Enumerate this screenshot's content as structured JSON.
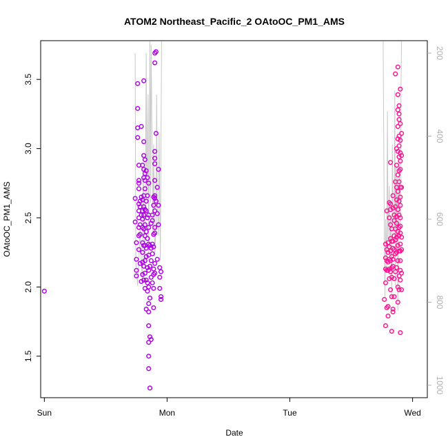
{
  "chart_data": {
    "type": "scatter",
    "title": "ATOM2 Northeast_Pacific_2 OAtoOC_PM1_AMS",
    "xlabel": "Date",
    "ylabel": "OAtoOC_PM1_AMS",
    "x_axis": {
      "unit": "days since Sunday 00:00",
      "range": [
        -0.03,
        3.12
      ],
      "ticks": [
        {
          "value": 0,
          "label": "Sun"
        },
        {
          "value": 1,
          "label": "Mon"
        },
        {
          "value": 2,
          "label": "Tue"
        },
        {
          "value": 3,
          "label": "Wed"
        }
      ]
    },
    "y_axis": {
      "range": [
        1.2,
        3.78
      ],
      "ticks": [
        1.5,
        2.0,
        2.5,
        3.0,
        3.5
      ],
      "tick_labels": [
        "1.5",
        "2.0",
        "2.5",
        "3.0",
        "3.5"
      ]
    },
    "y2_axis": {
      "label": "",
      "range": [
        1030,
        170
      ],
      "reversed": true,
      "ticks": [
        200,
        400,
        600,
        800,
        1000
      ],
      "color": "#b0b0b0"
    },
    "grid": false,
    "colors": {
      "early_flight": "#b000e8",
      "late_flight": "#ff1493",
      "profile_line": "#c8c8c8"
    },
    "series": [
      {
        "marker": "open-circle",
        "values": [
          [
            0.0,
            1.97
          ],
          [
            0.74,
            2.64
          ],
          [
            0.74,
            2.47
          ],
          [
            0.75,
            2.2
          ],
          [
            0.75,
            2.12
          ],
          [
            0.75,
            2.08
          ],
          [
            0.75,
            2.32
          ],
          [
            0.76,
            3.47
          ],
          [
            0.76,
            3.29
          ],
          [
            0.76,
            3.15
          ],
          [
            0.76,
            3.08
          ],
          [
            0.77,
            2.88
          ],
          [
            0.77,
            2.77
          ],
          [
            0.77,
            2.75
          ],
          [
            0.77,
            2.71
          ],
          [
            0.77,
            2.6
          ],
          [
            0.77,
            2.55
          ],
          [
            0.77,
            2.5
          ],
          [
            0.77,
            2.43
          ],
          [
            0.77,
            2.37
          ],
          [
            0.77,
            2.27
          ],
          [
            0.78,
            2.62
          ],
          [
            0.78,
            2.58
          ],
          [
            0.78,
            2.45
          ],
          [
            0.78,
            2.38
          ],
          [
            0.78,
            2.17
          ],
          [
            0.79,
            2.04
          ],
          [
            0.79,
            2.52
          ],
          [
            0.79,
            2.65
          ],
          [
            0.79,
            3.16
          ],
          [
            0.8,
            2.88
          ],
          [
            0.8,
            2.63
          ],
          [
            0.8,
            2.55
          ],
          [
            0.8,
            2.49
          ],
          [
            0.8,
            2.43
          ],
          [
            0.8,
            2.32
          ],
          [
            0.8,
            2.25
          ],
          [
            0.8,
            2.18
          ],
          [
            0.8,
            2.09
          ],
          [
            0.81,
            3.49
          ],
          [
            0.81,
            3.05
          ],
          [
            0.81,
            2.95
          ],
          [
            0.81,
            2.85
          ],
          [
            0.81,
            2.79
          ],
          [
            0.81,
            2.66
          ],
          [
            0.81,
            2.58
          ],
          [
            0.81,
            2.52
          ],
          [
            0.81,
            2.42
          ],
          [
            0.81,
            2.3
          ],
          [
            0.81,
            2.15
          ],
          [
            0.81,
            2.05
          ],
          [
            0.82,
            2.92
          ],
          [
            0.82,
            2.82
          ],
          [
            0.82,
            2.77
          ],
          [
            0.82,
            2.71
          ],
          [
            0.82,
            2.56
          ],
          [
            0.82,
            2.45
          ],
          [
            0.82,
            2.37
          ],
          [
            0.82,
            2.3
          ],
          [
            0.82,
            2.19
          ],
          [
            0.82,
            2.1
          ],
          [
            0.82,
            1.99
          ],
          [
            0.83,
            2.84
          ],
          [
            0.83,
            2.62
          ],
          [
            0.83,
            2.55
          ],
          [
            0.83,
            2.4
          ],
          [
            0.83,
            2.28
          ],
          [
            0.83,
            2.22
          ],
          [
            0.83,
            2.05
          ],
          [
            0.83,
            1.84
          ],
          [
            0.84,
            2.79
          ],
          [
            0.84,
            2.66
          ],
          [
            0.84,
            2.5
          ],
          [
            0.84,
            2.35
          ],
          [
            0.84,
            2.14
          ],
          [
            0.84,
            2.03
          ],
          [
            0.84,
            1.97
          ],
          [
            0.85,
            2.75
          ],
          [
            0.85,
            2.52
          ],
          [
            0.85,
            2.43
          ],
          [
            0.85,
            2.31
          ],
          [
            0.85,
            2.23
          ],
          [
            0.85,
            2.12
          ],
          [
            0.85,
            2.0
          ],
          [
            0.85,
            1.88
          ],
          [
            0.85,
            1.82
          ],
          [
            0.85,
            1.72
          ],
          [
            0.85,
            1.6
          ],
          [
            0.85,
            1.5
          ],
          [
            0.85,
            1.41
          ],
          [
            0.86,
            2.3
          ],
          [
            0.86,
            2.15
          ],
          [
            0.86,
            1.92
          ],
          [
            0.86,
            1.64
          ],
          [
            0.86,
            1.27
          ],
          [
            0.87,
            2.46
          ],
          [
            0.87,
            2.28
          ],
          [
            0.87,
            2.19
          ],
          [
            0.87,
            2.07
          ],
          [
            0.87,
            1.62
          ],
          [
            0.88,
            2.52
          ],
          [
            0.88,
            2.48
          ],
          [
            0.88,
            2.31
          ],
          [
            0.88,
            2.24
          ],
          [
            0.88,
            2.03
          ],
          [
            0.89,
            2.65
          ],
          [
            0.89,
            2.59
          ],
          [
            0.89,
            2.38
          ],
          [
            0.89,
            2.29
          ],
          [
            0.89,
            2.13
          ],
          [
            0.89,
            2.09
          ],
          [
            0.89,
            1.99
          ],
          [
            0.89,
            1.85
          ],
          [
            0.9,
            3.69
          ],
          [
            0.9,
            3.62
          ],
          [
            0.9,
            2.98
          ],
          [
            0.9,
            2.93
          ],
          [
            0.9,
            2.89
          ],
          [
            0.9,
            2.77
          ],
          [
            0.9,
            2.66
          ],
          [
            0.9,
            2.64
          ],
          [
            0.9,
            2.55
          ],
          [
            0.9,
            2.43
          ],
          [
            0.9,
            2.39
          ],
          [
            0.9,
            2.17
          ],
          [
            0.9,
            2.1
          ],
          [
            0.91,
            3.7
          ],
          [
            0.91,
            3.11
          ],
          [
            0.91,
            2.62
          ],
          [
            0.92,
            2.72
          ],
          [
            0.92,
            2.53
          ],
          [
            0.92,
            2.2
          ],
          [
            0.93,
            2.59
          ],
          [
            0.93,
            2.45
          ],
          [
            0.93,
            2.85
          ],
          [
            0.94,
            2.14
          ],
          [
            0.94,
            2.07
          ],
          [
            0.94,
            1.99
          ],
          [
            0.95,
            2.11
          ],
          [
            0.95,
            1.93
          ],
          [
            0.95,
            1.91
          ]
        ],
        "color": "#b000e8"
      },
      {
        "marker": "open-circle",
        "values": [
          [
            2.77,
            1.91
          ],
          [
            2.78,
            2.31
          ],
          [
            2.78,
            2.21
          ],
          [
            2.78,
            2.13
          ],
          [
            2.78,
            2.03
          ],
          [
            2.78,
            1.72
          ],
          [
            2.79,
            2.55
          ],
          [
            2.79,
            2.27
          ],
          [
            2.79,
            2.19
          ],
          [
            2.79,
            2.12
          ],
          [
            2.79,
            1.85
          ],
          [
            2.8,
            2.32
          ],
          [
            2.8,
            2.25
          ],
          [
            2.8,
            2.18
          ],
          [
            2.8,
            2.12
          ],
          [
            2.8,
            1.86
          ],
          [
            2.8,
            1.79
          ],
          [
            2.81,
            2.61
          ],
          [
            2.81,
            2.5
          ],
          [
            2.81,
            2.29
          ],
          [
            2.81,
            2.2
          ],
          [
            2.81,
            2.13
          ],
          [
            2.81,
            2.06
          ],
          [
            2.82,
            2.9
          ],
          [
            2.82,
            2.6
          ],
          [
            2.82,
            2.56
          ],
          [
            2.82,
            2.45
          ],
          [
            2.82,
            2.35
          ],
          [
            2.82,
            2.26
          ],
          [
            2.82,
            2.19
          ],
          [
            2.82,
            2.11
          ],
          [
            2.82,
            1.98
          ],
          [
            2.83,
            2.42
          ],
          [
            2.83,
            2.33
          ],
          [
            2.83,
            2.22
          ],
          [
            2.83,
            2.14
          ],
          [
            2.83,
            2.07
          ],
          [
            2.83,
            1.93
          ],
          [
            2.83,
            1.68
          ],
          [
            2.84,
            2.66
          ],
          [
            2.84,
            2.57
          ],
          [
            2.84,
            2.33
          ],
          [
            2.84,
            2.28
          ],
          [
            2.84,
            2.2
          ],
          [
            2.84,
            2.15
          ],
          [
            2.84,
            1.84
          ],
          [
            2.84,
            1.82
          ],
          [
            2.85,
            2.52
          ],
          [
            2.85,
            2.48
          ],
          [
            2.85,
            2.37
          ],
          [
            2.85,
            2.27
          ],
          [
            2.85,
            2.06
          ],
          [
            2.85,
            1.93
          ],
          [
            2.86,
            3.54
          ],
          [
            2.86,
            2.76
          ],
          [
            2.86,
            2.58
          ],
          [
            2.86,
            2.42
          ],
          [
            2.86,
            2.34
          ],
          [
            2.86,
            2.24
          ],
          [
            2.86,
            2.11
          ],
          [
            2.87,
            3.0
          ],
          [
            2.87,
            2.88
          ],
          [
            2.87,
            2.72
          ],
          [
            2.87,
            2.63
          ],
          [
            2.87,
            2.51
          ],
          [
            2.87,
            2.46
          ],
          [
            2.87,
            2.36
          ],
          [
            2.87,
            2.25
          ],
          [
            2.87,
            2.14
          ],
          [
            2.88,
            3.59
          ],
          [
            2.88,
            3.39
          ],
          [
            2.88,
            3.28
          ],
          [
            2.88,
            3.16
          ],
          [
            2.88,
            3.07
          ],
          [
            2.88,
            2.98
          ],
          [
            2.88,
            2.81
          ],
          [
            2.88,
            2.69
          ],
          [
            2.88,
            2.56
          ],
          [
            2.88,
            2.4
          ],
          [
            2.88,
            2.3
          ],
          [
            2.88,
            2.19
          ],
          [
            2.88,
            2.0
          ],
          [
            2.88,
            1.89
          ],
          [
            2.89,
            3.31
          ],
          [
            2.89,
            3.25
          ],
          [
            2.89,
            3.21
          ],
          [
            2.89,
            3.09
          ],
          [
            2.89,
            3.02
          ],
          [
            2.89,
            2.94
          ],
          [
            2.89,
            2.84
          ],
          [
            2.89,
            2.76
          ],
          [
            2.89,
            2.62
          ],
          [
            2.89,
            2.52
          ],
          [
            2.89,
            2.43
          ],
          [
            2.89,
            2.37
          ],
          [
            2.89,
            2.26
          ],
          [
            2.89,
            2.08
          ],
          [
            2.89,
            1.98
          ],
          [
            2.9,
            3.43
          ],
          [
            2.9,
            3.18
          ],
          [
            2.9,
            3.06
          ],
          [
            2.9,
            2.97
          ],
          [
            2.9,
            2.91
          ],
          [
            2.9,
            2.85
          ],
          [
            2.9,
            2.72
          ],
          [
            2.9,
            2.65
          ],
          [
            2.9,
            2.59
          ],
          [
            2.9,
            2.5
          ],
          [
            2.9,
            2.44
          ],
          [
            2.9,
            2.39
          ],
          [
            2.9,
            2.31
          ],
          [
            2.9,
            2.26
          ],
          [
            2.9,
            2.19
          ],
          [
            2.9,
            2.12
          ],
          [
            2.9,
            2.05
          ],
          [
            2.9,
            1.67
          ],
          [
            2.91,
            3.11
          ],
          [
            2.91,
            2.95
          ],
          [
            2.91,
            2.72
          ],
          [
            2.91,
            2.36
          ],
          [
            2.91,
            2.27
          ],
          [
            2.91,
            2.1
          ],
          [
            2.91,
            1.98
          ]
        ],
        "color": "#ff1493"
      }
    ]
  }
}
